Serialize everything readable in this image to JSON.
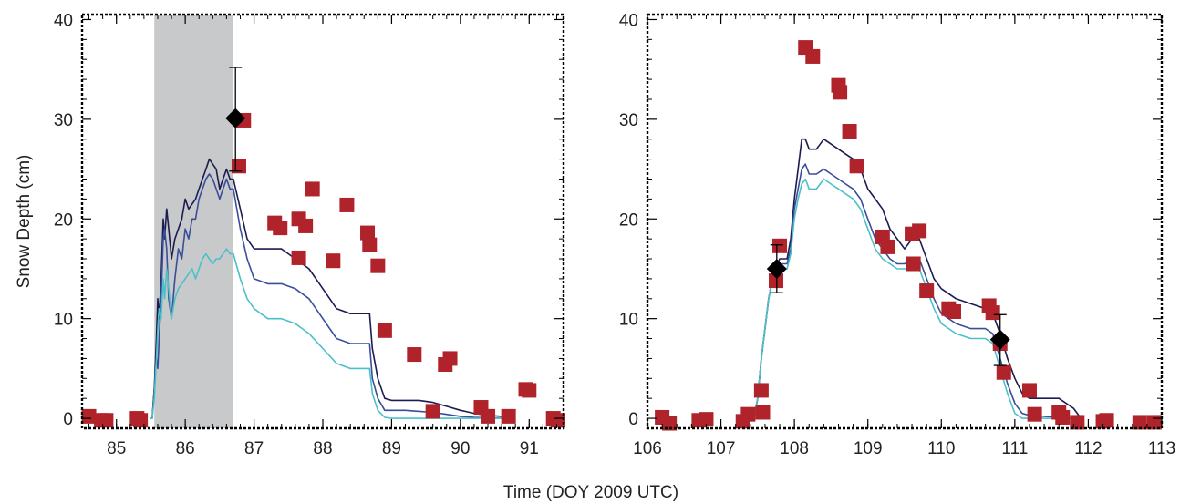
{
  "figure": {
    "ylabel": "Snow Depth (cm)",
    "xlabel": "Time (DOY 2009 UTC)"
  },
  "colors": {
    "series_dark": "#1c1c52",
    "series_mid": "#3a4e9a",
    "series_light": "#4cc0c8",
    "observed": "#b0232a",
    "manual": "#000000",
    "shade": "#c8c9cb"
  },
  "chart_data": [
    {
      "type": "line",
      "panel": "left",
      "xlim": [
        84.5,
        91.5
      ],
      "ylim": [
        -1,
        40.5
      ],
      "xticks": [
        "85",
        "86",
        "87",
        "88",
        "89",
        "90",
        "91"
      ],
      "yticks": [
        "0",
        "10",
        "20",
        "30",
        "40"
      ],
      "shaded_region": [
        85.55,
        86.7
      ],
      "series": [
        {
          "x": [
            85.5,
            85.52,
            85.55,
            85.58,
            85.6,
            85.62,
            85.65,
            85.68,
            85.7,
            85.73,
            85.76,
            85.8,
            85.85,
            85.9,
            85.95,
            86.0,
            86.05,
            86.1,
            86.15,
            86.2,
            86.25,
            86.3,
            86.35,
            86.4,
            86.45,
            86.5,
            86.55,
            86.6,
            86.65,
            86.7,
            86.8,
            86.9,
            87.0,
            87.2,
            87.4,
            87.6,
            87.8,
            88.0,
            88.2,
            88.4,
            88.6,
            88.68,
            88.72,
            88.8,
            88.9,
            89.0,
            89.2,
            89.4,
            89.6,
            89.8,
            90.0,
            90.2,
            90.4,
            90.6,
            90.8
          ],
          "y": [
            0,
            0,
            3,
            8,
            12,
            10,
            14,
            20,
            18,
            21,
            19,
            16,
            18,
            19,
            20,
            22,
            21,
            21.5,
            22,
            23,
            24,
            25,
            26,
            25.5,
            25,
            23,
            24,
            25,
            24,
            24,
            21,
            18,
            17,
            17,
            17,
            16,
            15,
            13,
            11,
            10.5,
            10.5,
            10.5,
            7,
            4,
            2,
            1.8,
            1.8,
            1.8,
            1.6,
            1.2,
            0.8,
            0.5,
            0.3,
            0.2,
            0.1
          ]
        },
        {
          "x": [
            85.5,
            85.52,
            85.55,
            85.58,
            85.6,
            85.62,
            85.65,
            85.68,
            85.7,
            85.73,
            85.76,
            85.8,
            85.85,
            85.9,
            85.95,
            86.0,
            86.05,
            86.1,
            86.15,
            86.2,
            86.25,
            86.3,
            86.35,
            86.4,
            86.45,
            86.5,
            86.55,
            86.6,
            86.65,
            86.7,
            86.8,
            86.9,
            87.0,
            87.2,
            87.4,
            87.6,
            87.8,
            88.0,
            88.2,
            88.4,
            88.6,
            88.68,
            88.72,
            88.8,
            88.9,
            89.0,
            89.2,
            89.4,
            89.6,
            89.8,
            90.0,
            90.2,
            90.4,
            90.6,
            90.8
          ],
          "y": [
            0,
            0,
            3,
            6,
            5,
            8,
            12,
            18,
            19,
            17,
            12,
            10,
            14,
            17,
            16,
            19,
            18,
            20,
            20,
            22,
            23,
            24,
            24.5,
            24,
            23,
            22,
            23,
            24,
            23,
            23,
            19,
            16,
            14,
            13.5,
            13.5,
            13,
            12,
            10,
            8,
            7.5,
            7.5,
            7.5,
            4,
            2,
            0.8,
            0.8,
            0.8,
            0.7,
            0.6,
            0.4,
            0.2,
            0.1,
            0.05,
            0,
            0
          ]
        },
        {
          "x": [
            85.5,
            85.52,
            85.55,
            85.58,
            85.6,
            85.62,
            85.65,
            85.68,
            85.7,
            85.73,
            85.76,
            85.8,
            85.85,
            85.9,
            85.95,
            86.0,
            86.05,
            86.1,
            86.15,
            86.2,
            86.25,
            86.3,
            86.35,
            86.4,
            86.45,
            86.5,
            86.55,
            86.6,
            86.65,
            86.7,
            86.8,
            86.9,
            87.0,
            87.2,
            87.4,
            87.6,
            87.8,
            88.0,
            88.2,
            88.4,
            88.6,
            88.68,
            88.72,
            88.8,
            88.9,
            89.0,
            89.2,
            89.4,
            89.6,
            89.8,
            90.0,
            90.2,
            90.4,
            90.6,
            90.8
          ],
          "y": [
            0,
            0,
            2,
            6,
            9,
            11,
            10,
            14,
            12,
            15,
            13,
            10,
            12,
            13,
            13.5,
            14,
            14.5,
            15,
            14,
            15,
            16,
            16.5,
            16,
            15.5,
            16,
            16,
            16.5,
            17,
            16.5,
            16.5,
            14,
            12,
            11,
            10,
            10,
            9.5,
            8.5,
            7,
            5.5,
            5,
            5,
            5,
            2.5,
            0.8,
            0.1,
            0,
            0,
            0,
            0,
            0,
            0,
            0,
            0,
            0,
            0
          ]
        }
      ],
      "observed_points": {
        "x": [
          84.6,
          84.78,
          84.85,
          85.3,
          85.35,
          86.78,
          86.85,
          87.3,
          87.38,
          87.65,
          87.65,
          87.75,
          87.85,
          88.15,
          88.35,
          88.65,
          88.68,
          88.8,
          88.9,
          89.33,
          89.6,
          89.78,
          89.85,
          90.3,
          90.4,
          90.7,
          90.95,
          91.0,
          91.35,
          91.42
        ],
        "y": [
          0.2,
          -0.2,
          -0.2,
          0,
          -0.2,
          25.3,
          29.9,
          19.6,
          19.1,
          20,
          16.1,
          19.3,
          23,
          15.8,
          21.4,
          18.6,
          17.4,
          15.3,
          8.8,
          6.4,
          0.7,
          5.4,
          6,
          1.1,
          0.2,
          0.2,
          2.9,
          2.8,
          0,
          -0.2
        ]
      },
      "manual_points": [
        {
          "x": 86.73,
          "y": 30.1,
          "err_lo": 24.8,
          "err_hi": 35.2
        }
      ]
    },
    {
      "type": "line",
      "panel": "right",
      "xlim": [
        106,
        113
      ],
      "ylim": [
        -1,
        40.5
      ],
      "xticks": [
        "106",
        "107",
        "108",
        "109",
        "110",
        "111",
        "112",
        "113"
      ],
      "yticks": [
        "0",
        "10",
        "20",
        "30",
        "40"
      ],
      "series": [
        {
          "x": [
            107.45,
            107.5,
            107.55,
            107.6,
            107.65,
            107.7,
            107.75,
            107.8,
            107.85,
            107.9,
            107.95,
            108.0,
            108.05,
            108.1,
            108.15,
            108.2,
            108.3,
            108.4,
            108.5,
            108.6,
            108.7,
            108.8,
            108.9,
            109.0,
            109.1,
            109.2,
            109.3,
            109.4,
            109.5,
            109.6,
            109.7,
            109.8,
            109.9,
            110.0,
            110.2,
            110.4,
            110.6,
            110.7,
            110.8,
            110.9,
            111.0,
            111.1,
            111.2,
            111.4,
            111.6,
            111.8,
            111.9
          ],
          "y": [
            0,
            2,
            6,
            9,
            12,
            14,
            15,
            16,
            16,
            16,
            18,
            22,
            25,
            28,
            28,
            27,
            27,
            28,
            27.5,
            27,
            26.5,
            26,
            25,
            23,
            22,
            21,
            19,
            18,
            17,
            18,
            18,
            16,
            14,
            13,
            12,
            11.5,
            11,
            10.5,
            8.5,
            6,
            4,
            2.5,
            2,
            2,
            2,
            1,
            0
          ]
        },
        {
          "x": [
            107.45,
            107.5,
            107.55,
            107.6,
            107.65,
            107.7,
            107.75,
            107.8,
            107.85,
            107.9,
            107.95,
            108.0,
            108.05,
            108.1,
            108.15,
            108.2,
            108.3,
            108.4,
            108.5,
            108.6,
            108.7,
            108.8,
            108.9,
            109.0,
            109.1,
            109.2,
            109.3,
            109.4,
            109.5,
            109.6,
            109.7,
            109.8,
            109.9,
            110.0,
            110.2,
            110.4,
            110.6,
            110.7,
            110.8,
            110.9,
            111.0,
            111.1,
            111.2,
            111.4,
            111.6,
            111.8,
            111.9
          ],
          "y": [
            0,
            2,
            6,
            9,
            12,
            14,
            15,
            15.5,
            15.5,
            15.5,
            17,
            21,
            23,
            25,
            25.5,
            24.5,
            24.5,
            25,
            24.5,
            24,
            23.5,
            23,
            22,
            20,
            18,
            17,
            16,
            15.5,
            15.5,
            16,
            16,
            14,
            12,
            10.5,
            9.5,
            9,
            9,
            8.5,
            6,
            3.5,
            1.5,
            0.5,
            0.3,
            0.2,
            0.1,
            0,
            0
          ]
        },
        {
          "x": [
            107.45,
            107.5,
            107.55,
            107.6,
            107.65,
            107.7,
            107.75,
            107.8,
            107.85,
            107.9,
            107.95,
            108.0,
            108.05,
            108.1,
            108.15,
            108.2,
            108.3,
            108.4,
            108.5,
            108.6,
            108.7,
            108.8,
            108.9,
            109.0,
            109.1,
            109.2,
            109.3,
            109.4,
            109.5,
            109.6,
            109.7,
            109.8,
            109.9,
            110.0,
            110.2,
            110.4,
            110.6,
            110.7,
            110.8,
            110.9,
            111.0,
            111.1,
            111.2,
            111.4,
            111.6,
            111.8,
            111.9
          ],
          "y": [
            0,
            2,
            6,
            9,
            12,
            14,
            14.5,
            15,
            15,
            15,
            16.5,
            20,
            22,
            23.5,
            24,
            23,
            23,
            24,
            23.5,
            23,
            22.5,
            22,
            21,
            19,
            17,
            16,
            15.5,
            15,
            15,
            15,
            15,
            13,
            11,
            9.5,
            8.5,
            8,
            8,
            7.5,
            5,
            2.5,
            0.5,
            0,
            0,
            0,
            0,
            0,
            0
          ]
        }
      ],
      "observed_points": {
        "x": [
          106.2,
          106.3,
          106.7,
          106.8,
          107.3,
          107.37,
          107.55,
          107.57,
          107.75,
          107.8,
          108.15,
          108.25,
          108.6,
          108.62,
          108.75,
          108.85,
          109.2,
          109.27,
          109.6,
          109.62,
          109.7,
          109.8,
          110.1,
          110.17,
          110.65,
          110.7,
          110.8,
          110.85,
          111.2,
          111.27,
          111.6,
          111.65,
          111.85,
          112.2,
          112.25,
          112.7,
          112.9
        ],
        "y": [
          0.1,
          -0.5,
          -0.2,
          -0.1,
          -0.3,
          0.4,
          2.8,
          0.6,
          13.8,
          17.3,
          37.2,
          36.3,
          33.4,
          32.7,
          28.8,
          25.3,
          18.2,
          17.2,
          18.5,
          15.5,
          18.8,
          12.8,
          11,
          10.7,
          11.3,
          10.6,
          7.5,
          4.6,
          2.8,
          0.4,
          0.6,
          0.1,
          -0.4,
          -0.3,
          -0.2,
          -0.4,
          -0.4
        ]
      },
      "manual_points": [
        {
          "x": 107.76,
          "y": 15.0,
          "err_lo": 12.6,
          "err_hi": 17.4
        },
        {
          "x": 110.8,
          "y": 7.9,
          "err_lo": 5.3,
          "err_hi": 10.4
        }
      ]
    }
  ]
}
